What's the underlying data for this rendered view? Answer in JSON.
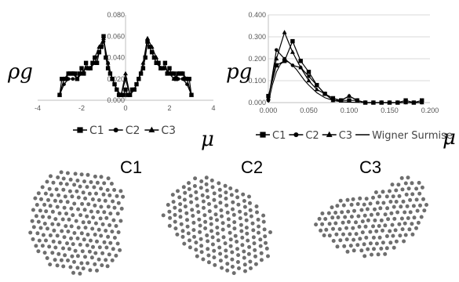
{
  "chart_data": [
    {
      "type": "line",
      "ylabel": "ρg",
      "xlabel": "μ",
      "xlim": [
        -4,
        4
      ],
      "ylim": [
        0,
        0.08
      ],
      "x_ticks": [
        "-4",
        "-2",
        "0",
        "2",
        "4"
      ],
      "y_ticks": [
        "0.000",
        "0.020",
        "0.040",
        "0.060",
        "0.080"
      ],
      "legend": [
        "C1",
        "C2",
        "C3"
      ],
      "legend_position": "bottom",
      "series": [
        {
          "name": "C1",
          "marker": "square",
          "x": [
            -3.0,
            -2.9,
            -2.8,
            -2.7,
            -2.6,
            -2.5,
            -2.4,
            -2.3,
            -2.2,
            -2.1,
            -2.0,
            -1.9,
            -1.8,
            -1.7,
            -1.6,
            -1.5,
            -1.4,
            -1.3,
            -1.2,
            -1.1,
            -1.0,
            -0.9,
            -0.8,
            -0.7,
            -0.6,
            -0.5,
            -0.4,
            -0.3,
            -0.2,
            -0.1,
            0.0,
            0.1,
            0.2,
            0.3,
            0.4,
            0.5,
            0.6,
            0.7,
            0.8,
            0.9,
            1.0,
            1.1,
            1.2,
            1.3,
            1.4,
            1.5,
            1.6,
            1.7,
            1.8,
            1.9,
            2.0,
            2.1,
            2.2,
            2.3,
            2.4,
            2.5,
            2.6,
            2.7,
            2.8,
            2.9,
            3.0
          ],
          "values": [
            0.005,
            0.02,
            0.02,
            0.02,
            0.025,
            0.025,
            0.025,
            0.025,
            0.02,
            0.025,
            0.03,
            0.025,
            0.035,
            0.03,
            0.03,
            0.035,
            0.04,
            0.035,
            0.045,
            0.05,
            0.06,
            0.04,
            0.03,
            0.025,
            0.02,
            0.015,
            0.01,
            0.005,
            0.005,
            0.005,
            0.01,
            0.005,
            0.005,
            0.01,
            0.01,
            0.015,
            0.02,
            0.025,
            0.03,
            0.04,
            0.055,
            0.05,
            0.045,
            0.04,
            0.035,
            0.035,
            0.03,
            0.03,
            0.035,
            0.025,
            0.03,
            0.025,
            0.025,
            0.02,
            0.025,
            0.025,
            0.025,
            0.02,
            0.02,
            0.02,
            0.005
          ]
        },
        {
          "name": "C2",
          "marker": "circle",
          "x": [
            -3.0,
            -2.8,
            -2.6,
            -2.4,
            -2.2,
            -2.0,
            -1.8,
            -1.6,
            -1.4,
            -1.2,
            -1.0,
            -0.8,
            -0.6,
            -0.4,
            -0.2,
            0.0,
            0.2,
            0.4,
            0.6,
            0.8,
            1.0,
            1.2,
            1.4,
            1.6,
            1.8,
            2.0,
            2.2,
            2.4,
            2.6,
            2.8,
            3.0
          ],
          "values": [
            0.005,
            0.015,
            0.02,
            0.02,
            0.02,
            0.025,
            0.03,
            0.03,
            0.035,
            0.045,
            0.055,
            0.035,
            0.02,
            0.01,
            0.005,
            0.02,
            0.005,
            0.01,
            0.02,
            0.03,
            0.055,
            0.045,
            0.035,
            0.03,
            0.03,
            0.025,
            0.02,
            0.02,
            0.02,
            0.015,
            0.005
          ]
        },
        {
          "name": "C3",
          "marker": "triangle",
          "x": [
            -3.0,
            -2.8,
            -2.6,
            -2.4,
            -2.2,
            -2.0,
            -1.8,
            -1.6,
            -1.4,
            -1.2,
            -1.0,
            -0.8,
            -0.6,
            -0.4,
            -0.2,
            0.0,
            0.2,
            0.4,
            0.6,
            0.8,
            1.0,
            1.2,
            1.4,
            1.6,
            1.8,
            2.0,
            2.2,
            2.4,
            2.6,
            2.8,
            3.0
          ],
          "values": [
            0.005,
            0.02,
            0.025,
            0.025,
            0.02,
            0.025,
            0.03,
            0.03,
            0.04,
            0.05,
            0.058,
            0.035,
            0.02,
            0.01,
            0.005,
            0.025,
            0.005,
            0.01,
            0.02,
            0.035,
            0.058,
            0.05,
            0.04,
            0.03,
            0.03,
            0.025,
            0.02,
            0.025,
            0.025,
            0.02,
            0.005
          ]
        }
      ]
    },
    {
      "type": "line",
      "ylabel": "pg",
      "xlabel": "μ",
      "xlim": [
        0,
        0.2
      ],
      "ylim": [
        0,
        0.4
      ],
      "x_ticks": [
        "0.000",
        "0.050",
        "0.100",
        "0.150",
        "0.200"
      ],
      "y_ticks": [
        "0.000",
        "0.100",
        "0.200",
        "0.300",
        "0.400"
      ],
      "legend": [
        "C1",
        "C2",
        "C3",
        "Wigner Surmise"
      ],
      "legend_position": "bottom",
      "series": [
        {
          "name": "C1",
          "marker": "square",
          "x": [
            0.0,
            0.01,
            0.02,
            0.03,
            0.04,
            0.05,
            0.06,
            0.07,
            0.08,
            0.09,
            0.1,
            0.11,
            0.12,
            0.13,
            0.14,
            0.15,
            0.16,
            0.17,
            0.18,
            0.19
          ],
          "values": [
            0.03,
            0.17,
            0.19,
            0.28,
            0.19,
            0.14,
            0.08,
            0.04,
            0.02,
            0.01,
            0.01,
            0.01,
            0.0,
            0.0,
            0.0,
            0.0,
            0.0,
            0.01,
            0.0,
            0.01
          ]
        },
        {
          "name": "C2",
          "marker": "circle",
          "x": [
            0.0,
            0.01,
            0.02,
            0.03,
            0.04,
            0.05,
            0.06,
            0.07,
            0.08,
            0.09,
            0.1,
            0.11,
            0.12,
            0.13,
            0.14,
            0.15,
            0.16,
            0.17,
            0.18,
            0.19
          ],
          "values": [
            0.01,
            0.24,
            0.2,
            0.17,
            0.16,
            0.12,
            0.08,
            0.04,
            0.01,
            0.01,
            0.03,
            0.01,
            0.0,
            0.0,
            0.0,
            0.0,
            0.0,
            0.0,
            0.0,
            0.0
          ]
        },
        {
          "name": "C3",
          "marker": "triangle",
          "x": [
            0.0,
            0.01,
            0.02,
            0.03,
            0.04,
            0.05,
            0.06,
            0.07,
            0.08,
            0.09,
            0.1,
            0.11,
            0.12,
            0.13,
            0.14,
            0.15,
            0.16,
            0.17,
            0.18,
            0.19
          ],
          "values": [
            0.02,
            0.2,
            0.32,
            0.23,
            0.16,
            0.1,
            0.06,
            0.04,
            0.01,
            0.01,
            0.03,
            0.01,
            0.0,
            0.0,
            0.0,
            0.0,
            0.0,
            0.0,
            0.0,
            0.0
          ]
        },
        {
          "name": "Wigner Surmise",
          "marker": "none",
          "x": [
            0.0,
            0.005,
            0.01,
            0.015,
            0.02,
            0.025,
            0.03,
            0.035,
            0.04,
            0.045,
            0.05,
            0.06,
            0.07,
            0.08,
            0.09,
            0.1,
            0.12,
            0.14,
            0.16,
            0.18,
            0.19
          ],
          "values": [
            0.0,
            0.08,
            0.14,
            0.175,
            0.19,
            0.185,
            0.17,
            0.15,
            0.125,
            0.1,
            0.08,
            0.045,
            0.022,
            0.01,
            0.004,
            0.002,
            0.0,
            0.0,
            0.0,
            0.0,
            0.0
          ]
        }
      ]
    }
  ],
  "clusters": [
    {
      "label": "C1"
    },
    {
      "label": "C2"
    },
    {
      "label": "C3"
    }
  ],
  "colors": {
    "series": "#000000",
    "grid": "#d9d9d9",
    "axis": "#bfbfbf",
    "dots": "#6e6e6e"
  }
}
